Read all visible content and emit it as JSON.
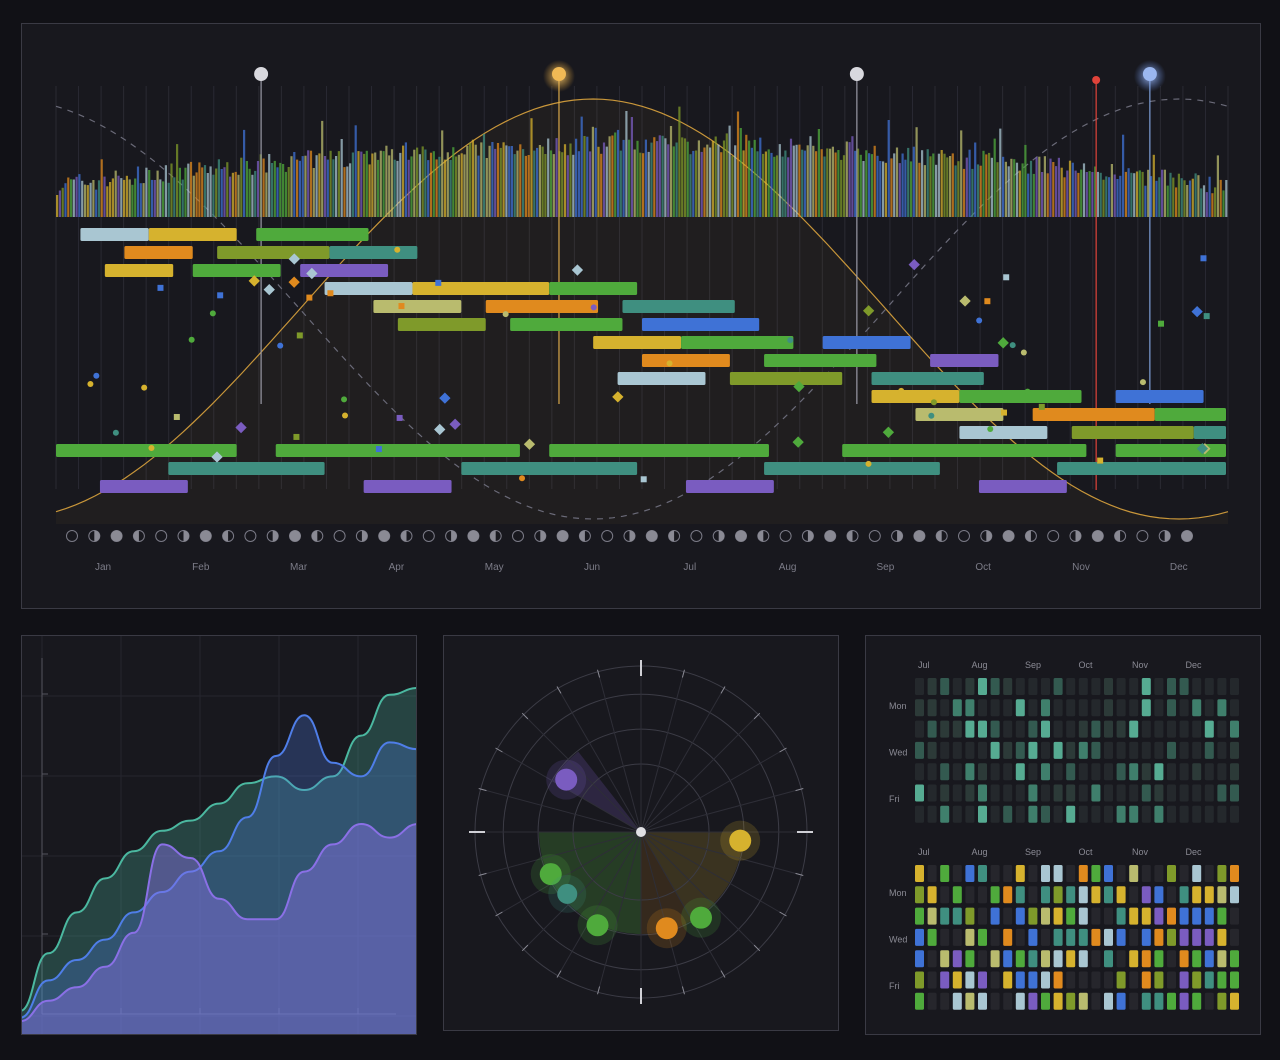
{
  "colors": {
    "bg": "#111116",
    "panel": "#18181e",
    "green": "#4faa3c",
    "teal": "#3f8f80",
    "yellow": "#d6b22e",
    "orange": "#e08a1e",
    "purple": "#7a5cc0",
    "blue": "#3f72d6",
    "olive": "#7f9a2a",
    "khaki": "#b9bb6e",
    "lightblue": "#a9c6d2",
    "red": "#e0433a"
  },
  "chart_data": [
    {
      "type": "timeline",
      "months": [
        "Jan",
        "Feb",
        "Mar",
        "Apr",
        "May",
        "Jun",
        "Jul",
        "Aug",
        "Sep",
        "Oct",
        "Nov",
        "Dec"
      ],
      "markers": [
        {
          "month": 2.1,
          "style": "white"
        },
        {
          "month": 5.15,
          "style": "sun"
        },
        {
          "month": 8.2,
          "style": "white"
        },
        {
          "month": 10.65,
          "style": "red"
        },
        {
          "month": 11.2,
          "style": "moon"
        }
      ],
      "bars": [
        {
          "row": 0,
          "start": 0.25,
          "end": 0.95,
          "color": "lightblue"
        },
        {
          "row": 0,
          "start": 0.95,
          "end": 1.85,
          "color": "yellow"
        },
        {
          "row": 0,
          "start": 2.05,
          "end": 3.2,
          "color": "green"
        },
        {
          "row": 1,
          "start": 0.7,
          "end": 1.4,
          "color": "orange"
        },
        {
          "row": 1,
          "start": 1.65,
          "end": 2.8,
          "color": "olive"
        },
        {
          "row": 1,
          "start": 2.8,
          "end": 3.7,
          "color": "teal"
        },
        {
          "row": 2,
          "start": 0.5,
          "end": 1.2,
          "color": "yellow"
        },
        {
          "row": 2,
          "start": 1.4,
          "end": 2.3,
          "color": "green"
        },
        {
          "row": 2,
          "start": 2.5,
          "end": 3.4,
          "color": "purple"
        },
        {
          "row": 3,
          "start": 2.75,
          "end": 3.65,
          "color": "lightblue"
        },
        {
          "row": 3,
          "start": 3.65,
          "end": 5.05,
          "color": "yellow"
        },
        {
          "row": 3,
          "start": 5.05,
          "end": 5.95,
          "color": "green"
        },
        {
          "row": 4,
          "start": 3.25,
          "end": 4.15,
          "color": "khaki"
        },
        {
          "row": 4,
          "start": 4.4,
          "end": 5.55,
          "color": "orange"
        },
        {
          "row": 4,
          "start": 5.8,
          "end": 6.95,
          "color": "teal"
        },
        {
          "row": 5,
          "start": 3.5,
          "end": 4.4,
          "color": "olive"
        },
        {
          "row": 5,
          "start": 4.65,
          "end": 5.8,
          "color": "green"
        },
        {
          "row": 5,
          "start": 6.0,
          "end": 7.2,
          "color": "blue"
        },
        {
          "row": 6,
          "start": 5.5,
          "end": 6.4,
          "color": "yellow"
        },
        {
          "row": 6,
          "start": 6.4,
          "end": 7.55,
          "color": "green"
        },
        {
          "row": 6,
          "start": 7.85,
          "end": 8.75,
          "color": "blue"
        },
        {
          "row": 7,
          "start": 6.0,
          "end": 6.9,
          "color": "orange"
        },
        {
          "row": 7,
          "start": 7.25,
          "end": 8.4,
          "color": "green"
        },
        {
          "row": 7,
          "start": 8.95,
          "end": 9.65,
          "color": "purple"
        },
        {
          "row": 8,
          "start": 5.75,
          "end": 6.65,
          "color": "lightblue"
        },
        {
          "row": 8,
          "start": 6.9,
          "end": 8.05,
          "color": "olive"
        },
        {
          "row": 8,
          "start": 8.35,
          "end": 9.5,
          "color": "teal"
        },
        {
          "row": 9,
          "start": 8.35,
          "end": 9.25,
          "color": "yellow"
        },
        {
          "row": 9,
          "start": 9.25,
          "end": 10.5,
          "color": "green"
        },
        {
          "row": 9,
          "start": 10.85,
          "end": 11.75,
          "color": "blue"
        },
        {
          "row": 10,
          "start": 8.8,
          "end": 9.7,
          "color": "khaki"
        },
        {
          "row": 10,
          "start": 10.0,
          "end": 11.25,
          "color": "orange"
        },
        {
          "row": 10,
          "start": 11.25,
          "end": 12.25,
          "color": "green"
        },
        {
          "row": 11,
          "start": 9.25,
          "end": 10.15,
          "color": "lightblue"
        },
        {
          "row": 11,
          "start": 10.4,
          "end": 11.65,
          "color": "olive"
        },
        {
          "row": 11,
          "start": 11.65,
          "end": 12.1,
          "color": "teal"
        },
        {
          "row": 12,
          "start": 0.0,
          "end": 1.85,
          "color": "green"
        },
        {
          "row": 12,
          "start": 2.25,
          "end": 4.75,
          "color": "green"
        },
        {
          "row": 12,
          "start": 5.05,
          "end": 7.3,
          "color": "green"
        },
        {
          "row": 12,
          "start": 8.05,
          "end": 10.55,
          "color": "green"
        },
        {
          "row": 12,
          "start": 10.85,
          "end": 12.25,
          "color": "green"
        },
        {
          "row": 13,
          "start": 1.15,
          "end": 2.75,
          "color": "teal"
        },
        {
          "row": 13,
          "start": 4.15,
          "end": 5.95,
          "color": "teal"
        },
        {
          "row": 13,
          "start": 7.25,
          "end": 9.05,
          "color": "teal"
        },
        {
          "row": 13,
          "start": 10.25,
          "end": 12.25,
          "color": "teal"
        },
        {
          "row": 14,
          "start": 0.45,
          "end": 1.35,
          "color": "purple"
        },
        {
          "row": 14,
          "start": 3.15,
          "end": 4.05,
          "color": "purple"
        },
        {
          "row": 14,
          "start": 6.45,
          "end": 7.35,
          "color": "purple"
        },
        {
          "row": 14,
          "start": 9.45,
          "end": 10.35,
          "color": "purple"
        }
      ]
    },
    {
      "type": "area",
      "series": [
        {
          "color": "#4bb8a0",
          "values": [
            0.05,
            0.22,
            0.34,
            0.44,
            0.52,
            0.58,
            0.61,
            0.66,
            0.72,
            0.74,
            0.7,
            0.74,
            0.86,
            0.98,
            1.0
          ]
        },
        {
          "color": "#4f7ee8",
          "values": [
            0.03,
            0.14,
            0.2,
            0.26,
            0.34,
            0.4,
            0.46,
            0.52,
            0.62,
            0.8,
            0.92,
            0.78,
            0.74,
            0.84,
            0.82
          ]
        },
        {
          "color": "#8a70e6",
          "values": [
            0.02,
            0.08,
            0.12,
            0.18,
            0.28,
            0.54,
            0.5,
            0.38,
            0.32,
            0.32,
            0.46,
            0.54,
            0.6,
            0.56,
            0.6
          ]
        }
      ]
    },
    {
      "type": "scatter",
      "points": [
        {
          "angle": -55,
          "r": 0.55,
          "size": 14,
          "color": "purple"
        },
        {
          "angle": -115,
          "r": 0.6,
          "size": 14,
          "color": "green"
        },
        {
          "angle": -130,
          "r": 0.58,
          "size": 13,
          "color": "teal"
        },
        {
          "angle": -155,
          "r": 0.62,
          "size": 14,
          "color": "green"
        },
        {
          "angle": 165,
          "r": 0.6,
          "size": 14,
          "color": "orange"
        },
        {
          "angle": 145,
          "r": 0.63,
          "size": 14,
          "color": "green"
        },
        {
          "angle": 95,
          "r": 0.6,
          "size": 14,
          "color": "yellow"
        }
      ],
      "wedges": [
        {
          "from": -60,
          "to": -38,
          "color": "purple",
          "alpha": 0.22
        },
        {
          "from": -180,
          "to": -90,
          "color": "green",
          "alpha": 0.25
        },
        {
          "from": 150,
          "to": 180,
          "color": "orange",
          "alpha": 0.15
        },
        {
          "from": 90,
          "to": 150,
          "color": "yellow",
          "alpha": 0.18
        }
      ]
    },
    {
      "type": "heatmap",
      "months": [
        "Jul",
        "Aug",
        "Sep",
        "Oct",
        "Nov",
        "Dec"
      ],
      "days": [
        "Mon",
        "Wed",
        "Fri"
      ]
    }
  ]
}
